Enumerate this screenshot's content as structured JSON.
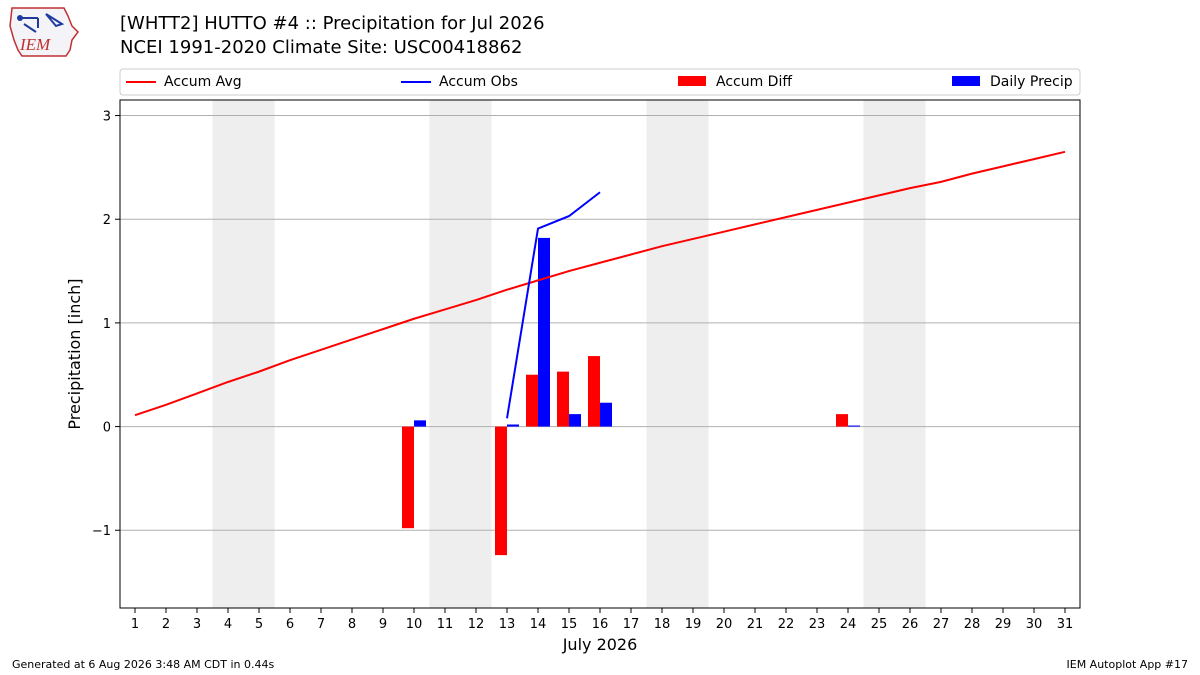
{
  "header": {
    "title": "[WHTT2] HUTTO #4 :: Precipitation for Jul 2026",
    "subtitle": "NCEI 1991-2020 Climate Site: USC00418862",
    "logo_text": "IEM"
  },
  "footer": {
    "left": "Generated at 6 Aug 2026 3:48 AM CDT in 0.44s",
    "right": "IEM Autoplot App #17"
  },
  "chart_data": {
    "type": "bar",
    "xlabel": "July 2026",
    "ylabel": "Precipitation [inch]",
    "ylim": [
      -1.75,
      3.15
    ],
    "yticks": [
      -1,
      0,
      1,
      2,
      3
    ],
    "ytick_labels": [
      "−1",
      "0",
      "1",
      "2",
      "3"
    ],
    "x": [
      1,
      2,
      3,
      4,
      5,
      6,
      7,
      8,
      9,
      10,
      11,
      12,
      13,
      14,
      15,
      16,
      17,
      18,
      19,
      20,
      21,
      22,
      23,
      24,
      25,
      26,
      27,
      28,
      29,
      30,
      31
    ],
    "weekend_days": [
      4,
      5,
      11,
      12,
      18,
      19,
      25,
      26
    ],
    "grid": true,
    "legend_placement": "top",
    "legend": [
      "Accum Avg",
      "Accum Obs",
      "Accum Diff",
      "Daily Precip"
    ],
    "colors": {
      "accum_avg": "#ff0000",
      "accum_obs": "#0000ff",
      "accum_diff": "#ff0000",
      "daily_precip": "#0000ff",
      "weekend": "#eeeeee",
      "grid": "#b0b0b0"
    },
    "series": [
      {
        "name": "Accum Avg",
        "kind": "line",
        "x": [
          1,
          2,
          3,
          4,
          5,
          6,
          7,
          8,
          9,
          10,
          11,
          12,
          13,
          14,
          15,
          16,
          17,
          18,
          19,
          20,
          21,
          22,
          23,
          24,
          25,
          26,
          27,
          28,
          29,
          30,
          31
        ],
        "values": [
          0.11,
          0.21,
          0.32,
          0.43,
          0.53,
          0.64,
          0.74,
          0.84,
          0.94,
          1.04,
          1.13,
          1.22,
          1.32,
          1.41,
          1.5,
          1.58,
          1.66,
          1.74,
          1.81,
          1.88,
          1.95,
          2.02,
          2.09,
          2.16,
          2.23,
          2.3,
          2.36,
          2.44,
          2.51,
          2.58,
          2.65
        ]
      },
      {
        "name": "Accum Obs",
        "kind": "line",
        "x": [
          13,
          14,
          15,
          16
        ],
        "values": [
          0.08,
          1.91,
          2.03,
          2.26
        ]
      },
      {
        "name": "Accum Diff",
        "kind": "bar",
        "x": [
          10,
          13,
          14,
          15,
          16,
          24
        ],
        "values": [
          -0.98,
          -1.24,
          0.5,
          0.53,
          0.68,
          0.12
        ]
      },
      {
        "name": "Daily Precip",
        "kind": "bar",
        "x": [
          10,
          13,
          14,
          15,
          16,
          24
        ],
        "values": [
          0.06,
          0.02,
          1.82,
          0.12,
          0.23,
          0.01
        ]
      }
    ]
  }
}
